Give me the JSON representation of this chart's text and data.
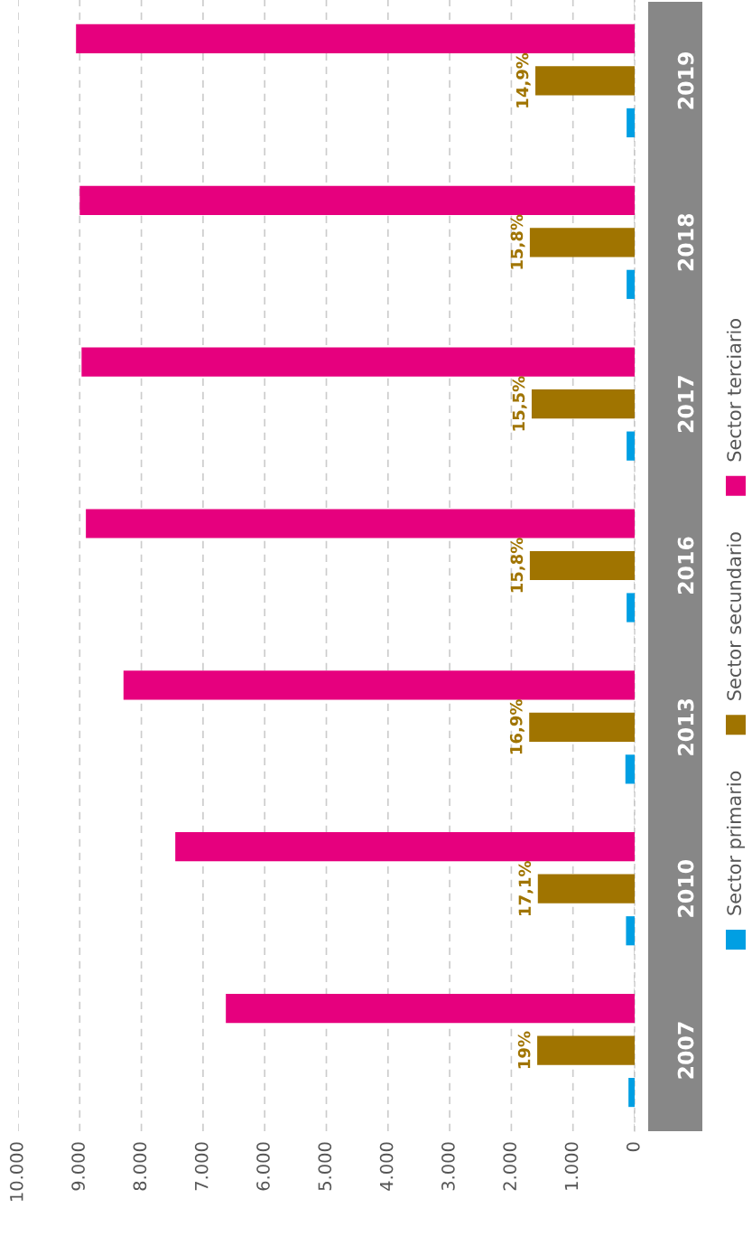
{
  "chart_data": {
    "type": "bar",
    "orientation": "horizontal",
    "categories": [
      "2019",
      "2018",
      "2017",
      "2016",
      "2013",
      "2010",
      "2007"
    ],
    "series": [
      {
        "name": "Sector primario",
        "color": "#009fe3",
        "values": [
          130,
          130,
          130,
          130,
          150,
          140,
          100
        ]
      },
      {
        "name": "Sector secundario",
        "color": "#a07400",
        "values": [
          1610,
          1700,
          1670,
          1700,
          1710,
          1570,
          1580
        ]
      },
      {
        "name": "Sector terciario",
        "color": "#e6007e",
        "values": [
          9060,
          9000,
          8970,
          8900,
          8290,
          7450,
          6630
        ]
      }
    ],
    "xlim": [
      10000,
      0
    ],
    "xticks": [
      {
        "value": 10000,
        "label": "10.000"
      },
      {
        "value": 9000,
        "label": "9.000"
      },
      {
        "value": 8000,
        "label": "8.000"
      },
      {
        "value": 7000,
        "label": "7.000"
      },
      {
        "value": 6000,
        "label": "6.000"
      },
      {
        "value": 5000,
        "label": "5.000"
      },
      {
        "value": 4000,
        "label": "4.000"
      },
      {
        "value": 3000,
        "label": "3.000"
      },
      {
        "value": 2000,
        "label": "2.000"
      },
      {
        "value": 1000,
        "label": "1.000"
      },
      0
    ],
    "annotations": [
      {
        "text": "14,9%",
        "x": 1610,
        "y": "2019"
      },
      {
        "text": "15,8%",
        "x": 1700,
        "y": "2018"
      },
      {
        "text": "15,5%",
        "x": 1670,
        "y": "2017"
      },
      {
        "text": "15,8%",
        "x": 1700,
        "y": "2016"
      },
      {
        "text": "16,9%",
        "x": 1710,
        "y": "2013"
      },
      {
        "text": "17,1%",
        "x": 1570,
        "y": "2010"
      },
      {
        "text": "19%",
        "x": 1580,
        "y": "2007"
      }
    ],
    "grid": "x",
    "legend": "right"
  }
}
